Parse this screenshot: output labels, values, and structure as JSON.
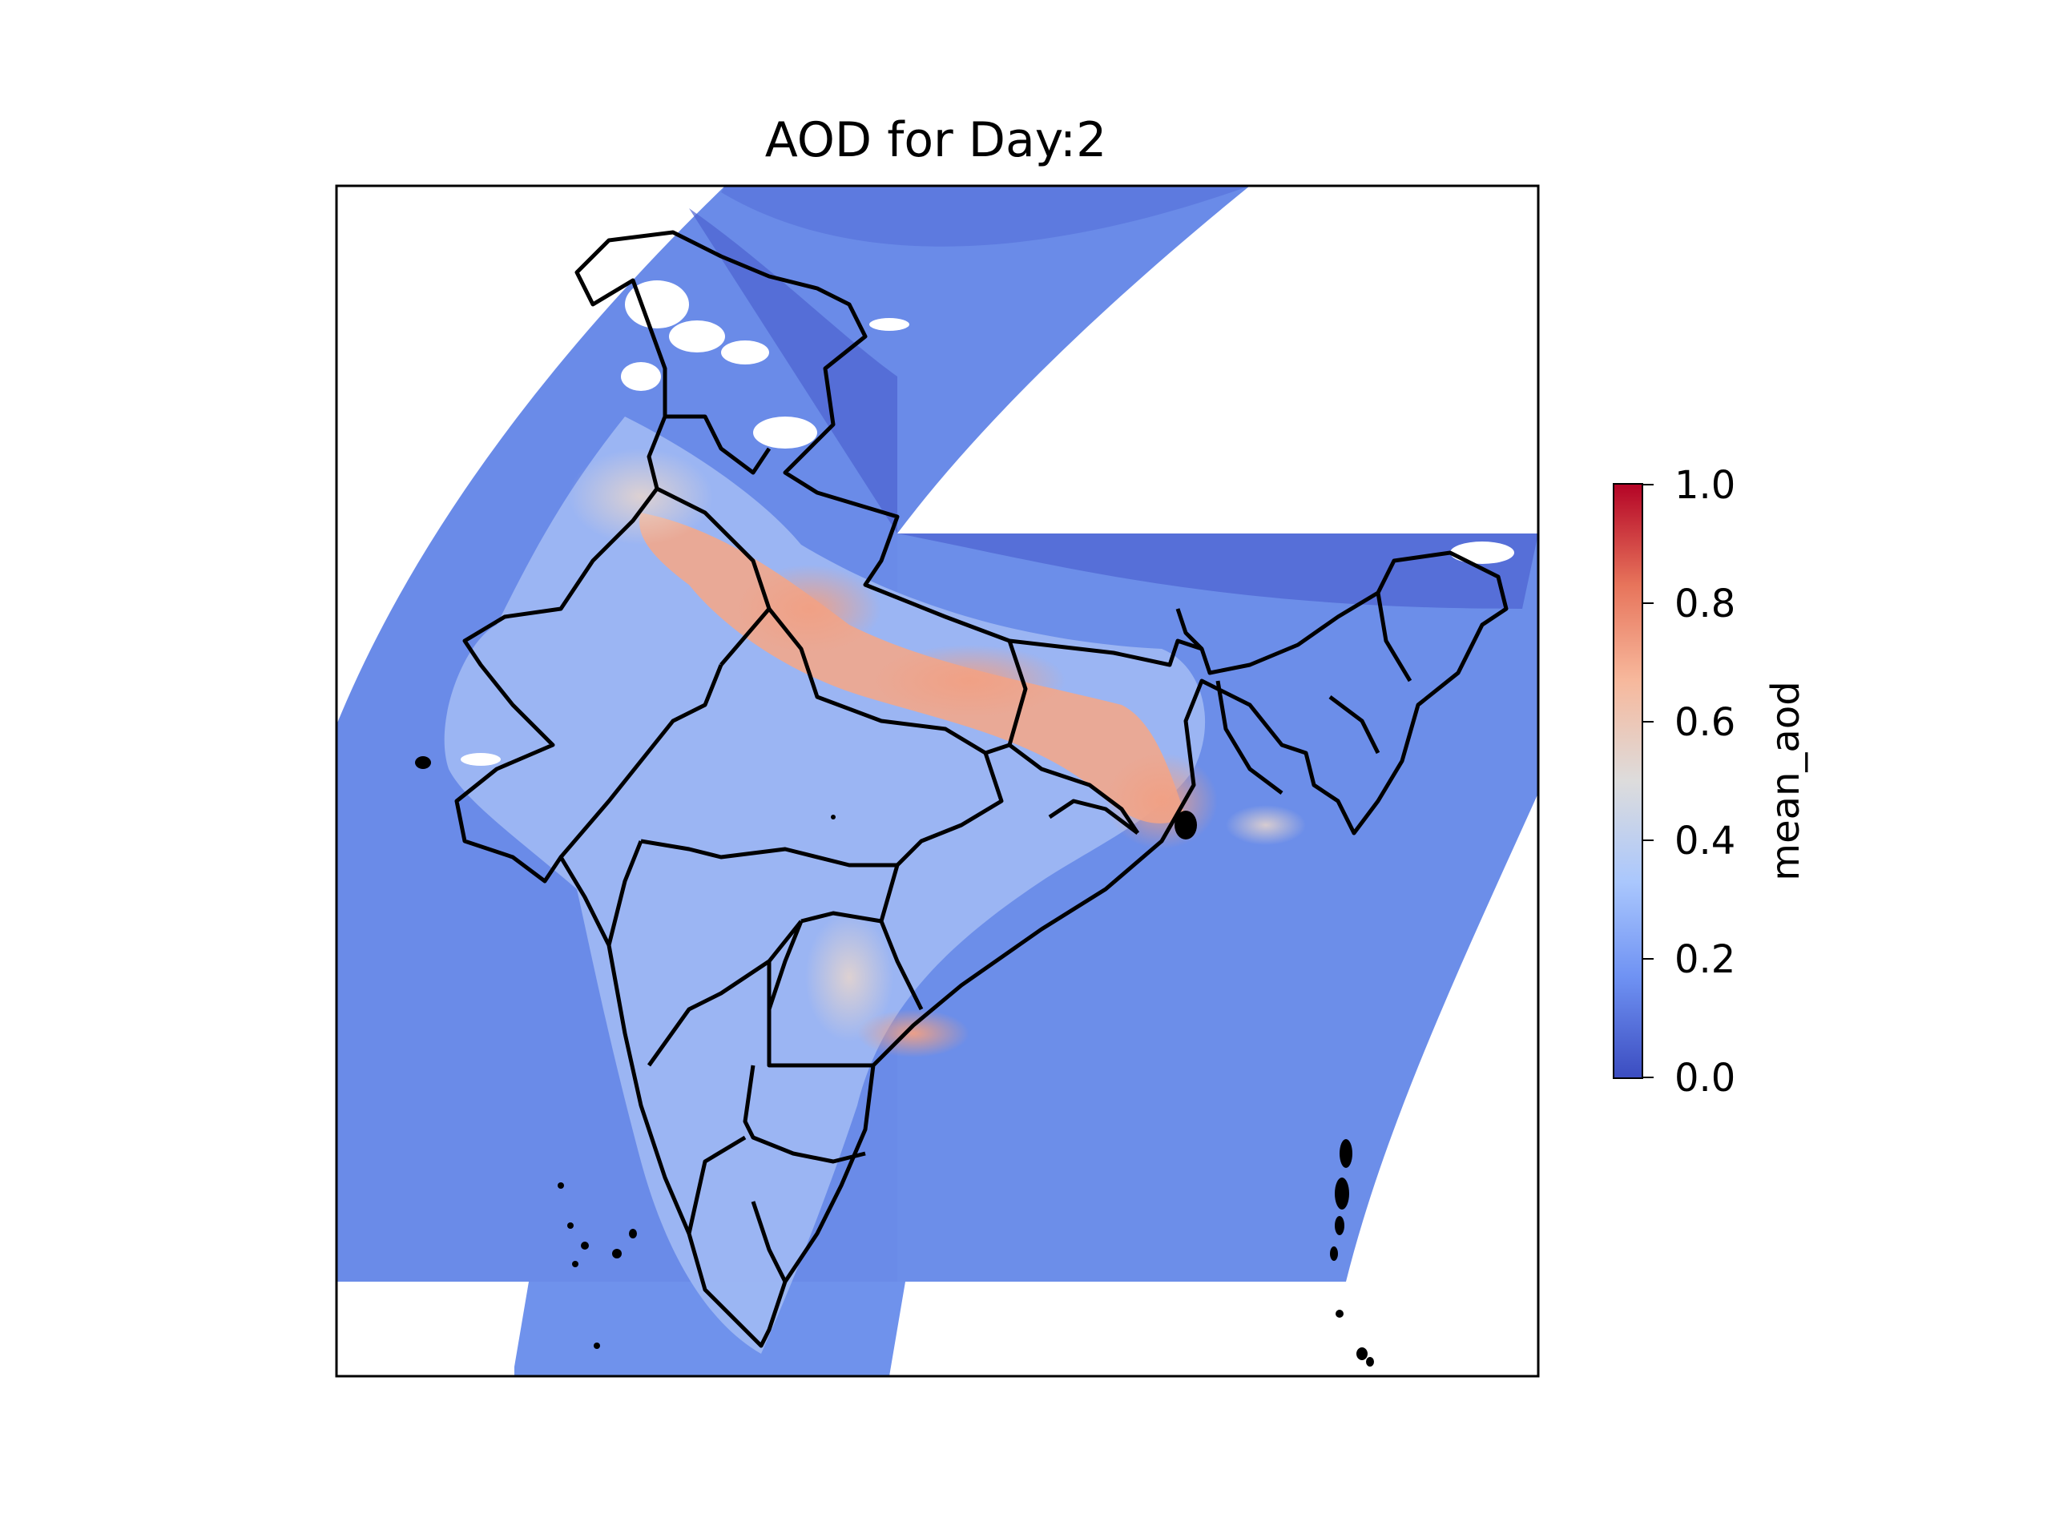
{
  "title": "AOD for Day:2",
  "colorbar": {
    "label": "mean_aod",
    "colormap": "coolwarm",
    "range": [
      0.0,
      1.0
    ],
    "ticks": [
      "1.0",
      "0.8",
      "0.6",
      "0.4",
      "0.2",
      "0.0"
    ],
    "colors": [
      "#3b4cc0",
      "#6f92f3",
      "#aac7fd",
      "#dddcdc",
      "#f7b89c",
      "#e7745b",
      "#b40426"
    ]
  },
  "map": {
    "region": "India",
    "boundaries": "state borders",
    "swath_base_color": "#6a8be8",
    "high_aod_color": "#f4a58a",
    "no_data_color": "#ffffff"
  }
}
